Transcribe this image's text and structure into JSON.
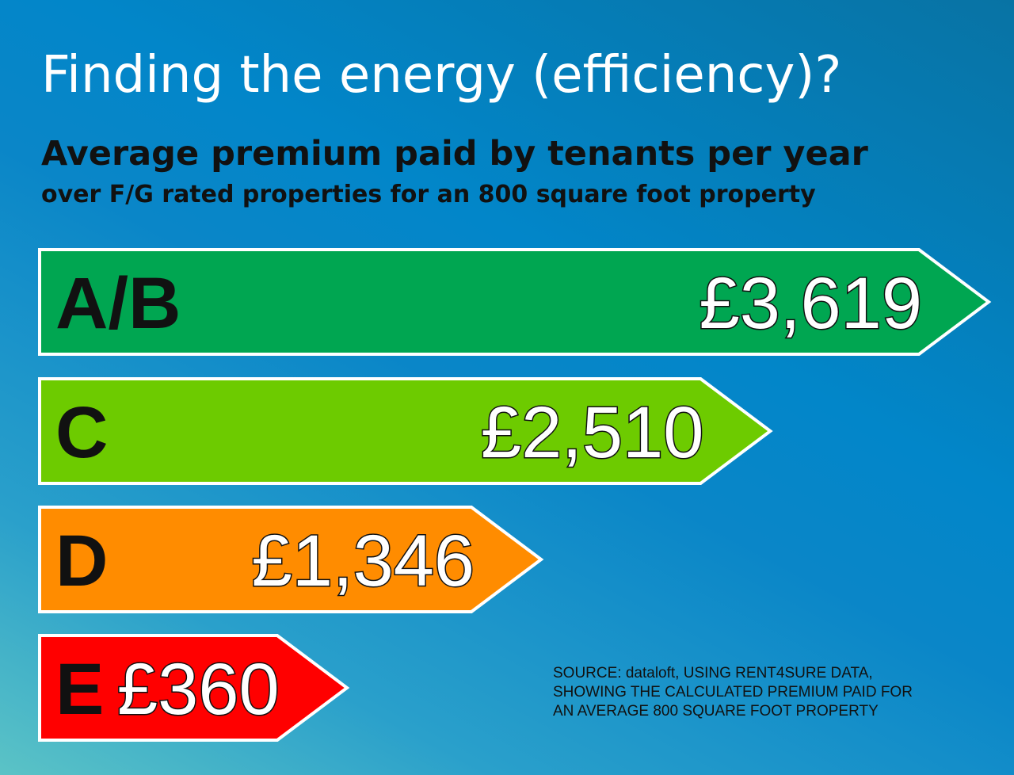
{
  "title": "Finding the energy (efficiency)?",
  "subtitle": "Average premium paid by tenants per year",
  "subtitle2": "over F/G rated properties for an 800 square foot property",
  "chart_data": {
    "type": "bar",
    "orientation": "horizontal",
    "categories": [
      "A/B",
      "C",
      "D",
      "E"
    ],
    "values": [
      3619,
      2510,
      1346,
      360
    ],
    "value_labels": [
      "£3,619",
      "£2,510",
      "£1,346",
      "£360"
    ],
    "colors": [
      "#00a651",
      "#6dcb00",
      "#ff8c00",
      "#ff0000"
    ],
    "style": "energy-rating arrows"
  },
  "source": [
    "SOURCE:  dataloft, USING RENT4SURE DATA,",
    "SHOWING THE CALCULATED PREMIUM PAID FOR",
    "AN AVERAGE 800 SQUARE FOOT PROPERTY"
  ]
}
